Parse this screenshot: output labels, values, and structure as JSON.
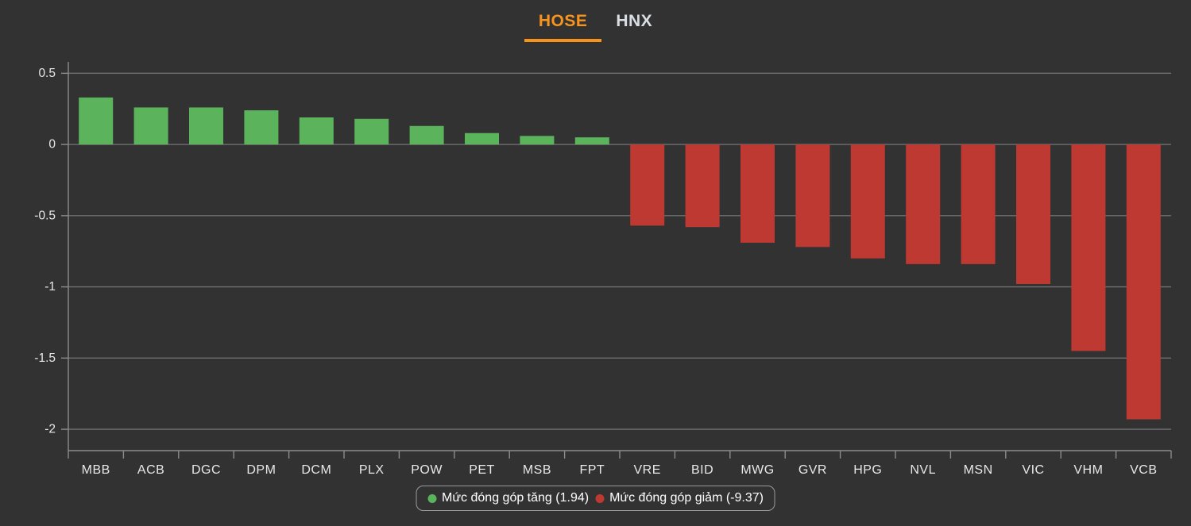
{
  "colors": {
    "background": "#323232",
    "positive": "#5bb45b",
    "negative": "#be3932",
    "accent": "#f7941e",
    "tab_inactive_text": "#d9dee4",
    "grid": "#6f6f6f",
    "axis": "#8c8c8c",
    "tick_text": "#e8e8e8",
    "legend_border": "#9a9a9a",
    "legend_text": "#ffffff"
  },
  "tabs": [
    {
      "label": "HOSE",
      "active": true
    },
    {
      "label": "HNX",
      "active": false
    }
  ],
  "legend": {
    "items": [
      {
        "label": "Mức đóng góp tăng (1.94)",
        "color_key": "positive"
      },
      {
        "label": "Mức đóng góp giảm (-9.37)",
        "color_key": "negative"
      }
    ]
  },
  "chart_data": {
    "type": "bar",
    "title": "",
    "categories": [
      "MBB",
      "ACB",
      "DGC",
      "DPM",
      "DCM",
      "PLX",
      "POW",
      "PET",
      "MSB",
      "FPT",
      "VRE",
      "BID",
      "MWG",
      "GVR",
      "HPG",
      "NVL",
      "MSN",
      "VIC",
      "VHM",
      "VCB"
    ],
    "values": [
      0.33,
      0.26,
      0.26,
      0.24,
      0.19,
      0.18,
      0.13,
      0.08,
      0.06,
      0.05,
      -0.57,
      -0.58,
      -0.69,
      -0.72,
      -0.8,
      -0.84,
      -0.84,
      -0.98,
      -1.45,
      -1.93
    ],
    "series": [
      {
        "name": "Mức đóng góp tăng (1.94)",
        "total": 1.94,
        "color_key": "positive"
      },
      {
        "name": "Mức đóng góp giảm (-9.37)",
        "total": -9.37,
        "color_key": "negative"
      }
    ],
    "xlabel": "",
    "ylabel": "",
    "ylim": [
      -2.15,
      0.58
    ],
    "yticks": [
      0.5,
      0,
      -0.5,
      -1,
      -1.5,
      -2
    ],
    "ytick_labels": [
      "0.5",
      "0",
      "-0.5",
      "-1",
      "-1.5",
      "-2"
    ],
    "grid": true,
    "legend_position": "bottom"
  }
}
